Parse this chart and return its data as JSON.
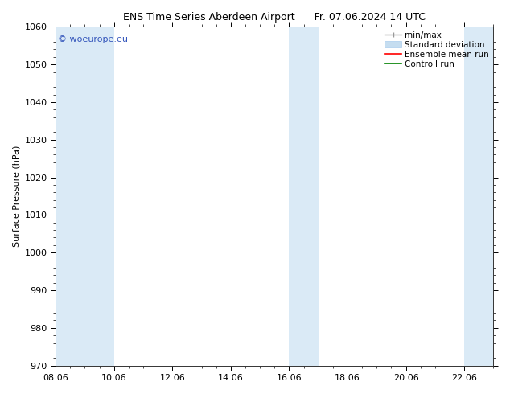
{
  "title_left": "ENS Time Series Aberdeen Airport",
  "title_right": "Fr. 07.06.2024 14 UTC",
  "ylabel": "Surface Pressure (hPa)",
  "ylim": [
    970,
    1060
  ],
  "yticks": [
    970,
    980,
    990,
    1000,
    1010,
    1020,
    1030,
    1040,
    1050,
    1060
  ],
  "xtick_labels": [
    "08.06",
    "10.06",
    "12.06",
    "14.06",
    "16.06",
    "18.06",
    "20.06",
    "22.06"
  ],
  "xtick_positions": [
    0,
    2,
    4,
    6,
    8,
    10,
    12,
    14
  ],
  "xlim": [
    0,
    15
  ],
  "shaded_bands": [
    {
      "xstart": 0.0,
      "xend": 2.0,
      "color": "#daeaf6"
    },
    {
      "xstart": 8.0,
      "xend": 9.0,
      "color": "#daeaf6"
    },
    {
      "xstart": 14.0,
      "xend": 15.0,
      "color": "#daeaf6"
    }
  ],
  "watermark_text": "© woeurope.eu",
  "watermark_color": "#3355bb",
  "legend_entries": [
    {
      "label": "min/max",
      "color": "#aaaaaa"
    },
    {
      "label": "Standard deviation",
      "color": "#c5ddf0"
    },
    {
      "label": "Ensemble mean run",
      "color": "red"
    },
    {
      "label": "Controll run",
      "color": "green"
    }
  ],
  "bg_color": "#ffffff",
  "plot_bg_color": "#ffffff",
  "title_fontsize": 9,
  "axis_fontsize": 8,
  "legend_fontsize": 7.5
}
